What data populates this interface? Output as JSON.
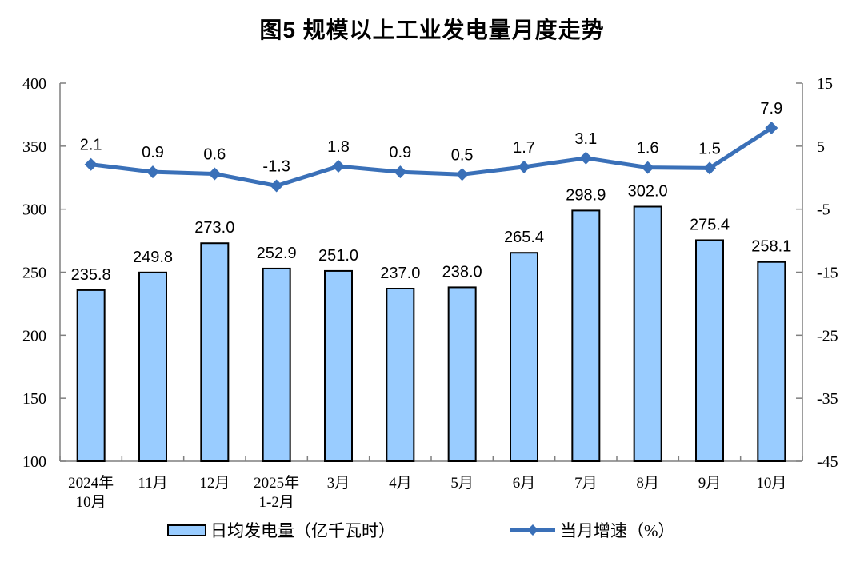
{
  "title": "图5  规模以上工业发电量月度走势",
  "chart_data": {
    "type": "combo-bar-line",
    "categories": [
      "2024年\n10月",
      "11月",
      "12月",
      "2025年\n1-2月",
      "3月",
      "4月",
      "5月",
      "6月",
      "7月",
      "8月",
      "9月",
      "10月"
    ],
    "series": [
      {
        "name": "日均发电量（亿千瓦时）",
        "type": "bar",
        "axis": "left",
        "values": [
          235.8,
          249.8,
          273.0,
          252.9,
          251.0,
          237.0,
          238.0,
          265.4,
          298.9,
          302.0,
          275.4,
          258.1
        ],
        "labels": [
          "235.8",
          "249.8",
          "273.0",
          "252.9",
          "251.0",
          "237.0",
          "238.0",
          "265.4",
          "298.9",
          "302.0",
          "275.4",
          "258.1"
        ]
      },
      {
        "name": "当月增速（%）",
        "type": "line",
        "axis": "right",
        "values": [
          2.1,
          0.9,
          0.6,
          -1.3,
          1.8,
          0.9,
          0.5,
          1.7,
          3.1,
          1.6,
          1.5,
          7.9
        ],
        "labels": [
          "2.1",
          "0.9",
          "0.6",
          "-1.3",
          "1.8",
          "0.9",
          "0.5",
          "1.7",
          "3.1",
          "1.6",
          "1.5",
          "7.9"
        ]
      }
    ],
    "left_axis": {
      "min": 100,
      "max": 400,
      "step": 50,
      "ticks": [
        "400",
        "350",
        "300",
        "250",
        "200",
        "150",
        "100"
      ]
    },
    "right_axis": {
      "min": -45,
      "max": 15,
      "step": 10,
      "ticks": [
        "15",
        "5",
        "-5",
        "-15",
        "-25",
        "-35",
        "-45"
      ]
    },
    "grid": "off",
    "legend_position": "bottom",
    "legend": [
      {
        "label": "日均发电量（亿千瓦时）",
        "marker": "bar-swatch"
      },
      {
        "label": "当月增速（%）",
        "marker": "line-swatch"
      }
    ],
    "colors": {
      "bar_fill": "#99CCFF",
      "bar_border": "#000000",
      "line": "#3A70B8",
      "axis": "#7F7F7F",
      "text": "#000000"
    }
  }
}
